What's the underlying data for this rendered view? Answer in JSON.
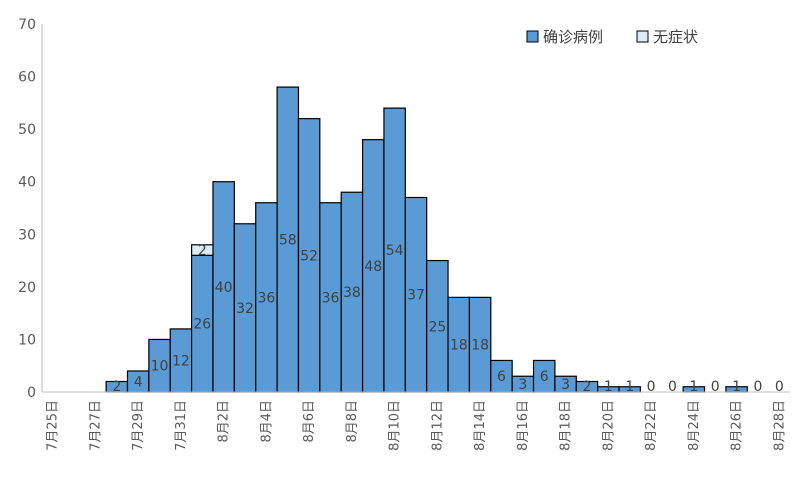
{
  "chart_data": {
    "type": "bar",
    "stacked": true,
    "categories": [
      "7月25日",
      "7月26日",
      "7月27日",
      "7月28日",
      "7月29日",
      "7月30日",
      "7月31日",
      "8月1日",
      "8月2日",
      "8月3日",
      "8月4日",
      "8月5日",
      "8月6日",
      "8月7日",
      "8月8日",
      "8月9日",
      "8月10日",
      "8月11日",
      "8月12日",
      "8月13日",
      "8月14日",
      "8月15日",
      "8月16日",
      "8月17日",
      "8月18日",
      "8月19日",
      "8月20日",
      "8月21日",
      "8月22日",
      "8月23日",
      "8月24日",
      "8月25日",
      "8月26日",
      "8月27日",
      "8月28日"
    ],
    "tick_labels": [
      "7月25日",
      "7月27日",
      "7月29日",
      "7月31日",
      "8月2日",
      "8月4日",
      "8月6日",
      "8月8日",
      "8月10日",
      "8月12日",
      "8月14日",
      "8月16日",
      "8月18日",
      "8月20日",
      "8月22日",
      "8月24日",
      "8月26日",
      "8月28日"
    ],
    "series": [
      {
        "name": "确诊病例",
        "color": "#5B9BD5",
        "values": [
          null,
          null,
          null,
          2,
          4,
          10,
          12,
          26,
          40,
          32,
          36,
          58,
          52,
          36,
          38,
          48,
          54,
          37,
          25,
          18,
          18,
          6,
          3,
          6,
          3,
          2,
          1,
          1,
          0,
          0,
          1,
          0,
          1,
          0,
          0
        ],
        "labels": [
          null,
          null,
          null,
          "2",
          "4",
          "10",
          "12",
          "26",
          "40",
          "32",
          "36",
          "58",
          "52",
          "36",
          "38",
          "48",
          "54",
          "37",
          "25",
          "18",
          "18",
          "6",
          "3",
          "6",
          "3",
          "2",
          "1",
          "1",
          "0",
          "0",
          "1",
          "0",
          "1",
          "0",
          "0"
        ]
      },
      {
        "name": "无症状",
        "color": "#DDEBF7",
        "values": [
          null,
          null,
          null,
          null,
          null,
          null,
          null,
          2,
          null,
          null,
          null,
          null,
          null,
          null,
          null,
          null,
          null,
          null,
          null,
          null,
          null,
          null,
          null,
          null,
          null,
          null,
          null,
          null,
          null,
          null,
          null,
          null,
          null,
          null,
          null
        ],
        "labels": [
          null,
          null,
          null,
          null,
          null,
          null,
          null,
          "2",
          null,
          null,
          null,
          null,
          null,
          null,
          null,
          null,
          null,
          null,
          null,
          null,
          null,
          null,
          null,
          null,
          null,
          null,
          null,
          null,
          null,
          null,
          null,
          null,
          null,
          null,
          null
        ]
      }
    ],
    "y_ticks": [
      "0",
      "10",
      "20",
      "30",
      "40",
      "50",
      "60",
      "70"
    ],
    "ylim": [
      0,
      70
    ],
    "grid": false,
    "legend_position": "top-right"
  }
}
